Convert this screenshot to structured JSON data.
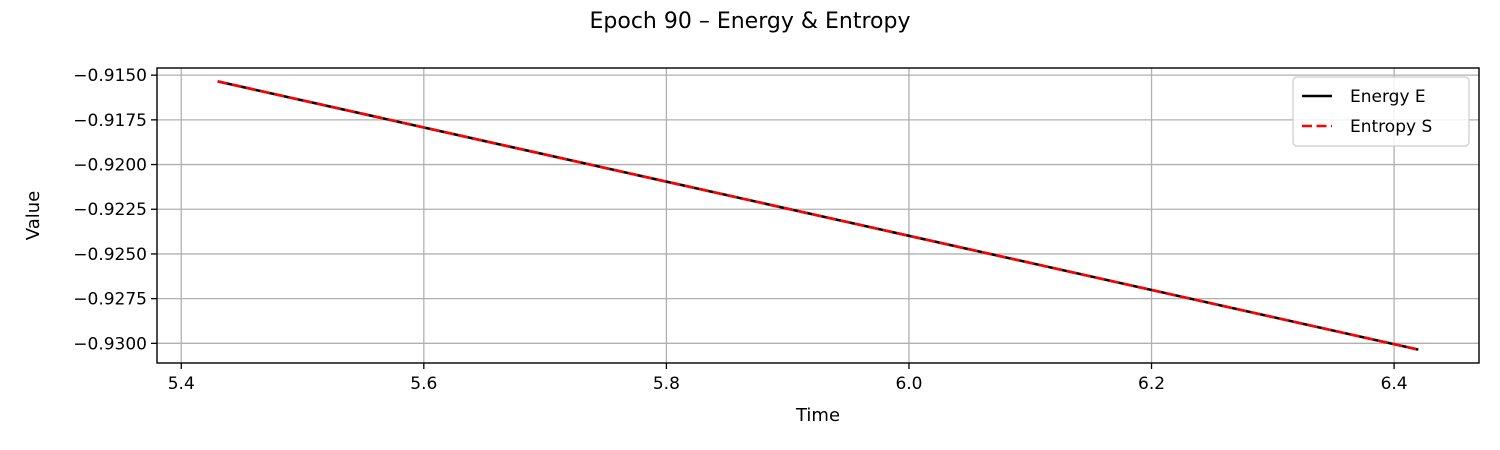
{
  "chart_data": {
    "type": "line",
    "title": "Epoch 90 – Energy & Entropy",
    "xlabel": "Time",
    "ylabel": "Value",
    "xlim": [
      5.38,
      6.47
    ],
    "ylim": [
      -0.9311,
      -0.9146
    ],
    "xticks": [
      5.4,
      5.6,
      5.8,
      6.0,
      6.2,
      6.4
    ],
    "xtick_labels": [
      "5.4",
      "5.6",
      "5.8",
      "6.0",
      "6.2",
      "6.4"
    ],
    "yticks": [
      -0.915,
      -0.9175,
      -0.92,
      -0.9225,
      -0.925,
      -0.9275,
      -0.93
    ],
    "ytick_labels": [
      "−0.9150",
      "−0.9175",
      "−0.9200",
      "−0.9225",
      "−0.9250",
      "−0.9275",
      "−0.9300"
    ],
    "grid": true,
    "legend_position": "top-right",
    "series": [
      {
        "name": "Energy E",
        "color": "#000000",
        "style": "solid",
        "x": [
          5.43,
          6.42
        ],
        "y": [
          -0.91535,
          -0.93035
        ]
      },
      {
        "name": "Entropy S",
        "color": "#ff0000",
        "style": "dashed",
        "x": [
          5.43,
          6.42
        ],
        "y": [
          -0.91535,
          -0.93035
        ]
      }
    ]
  }
}
